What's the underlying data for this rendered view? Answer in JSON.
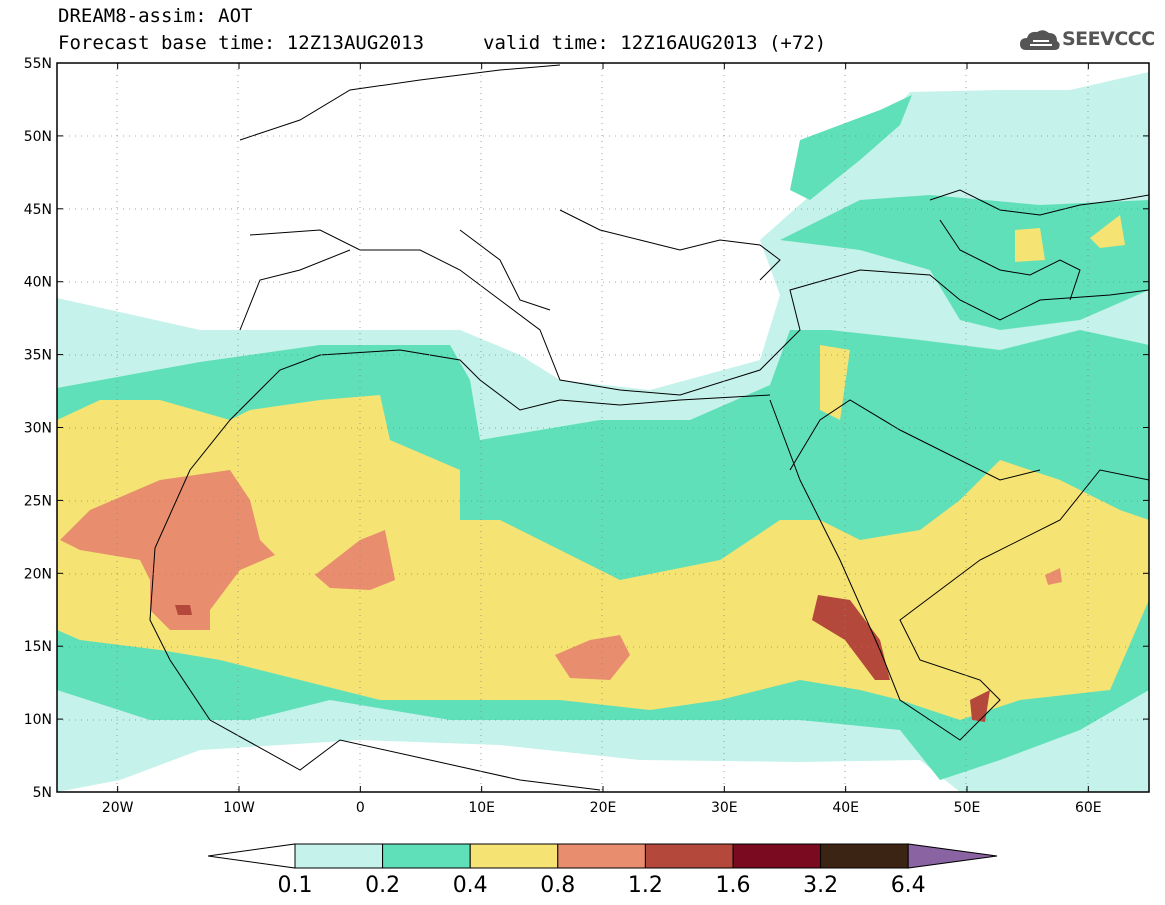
{
  "header": {
    "title": "DREAM8-assim: AOT",
    "base_time": "Forecast base time: 12Z13AUG2013",
    "valid_time": "valid time: 12Z16AUG2013 (+72)",
    "logo_text": "SEEVCCC",
    "logo_icon": "cloud-icon"
  },
  "map": {
    "lon_range": [
      -25,
      65
    ],
    "lat_range": [
      5,
      55
    ],
    "lat_labels": [
      "55N",
      "50N",
      "45N",
      "40N",
      "35N",
      "30N",
      "25N",
      "20N",
      "15N",
      "10N",
      "5N"
    ],
    "lon_labels": [
      "20W",
      "10W",
      "0",
      "10E",
      "20E",
      "30E",
      "40E",
      "50E",
      "60E"
    ]
  },
  "legend": {
    "thresholds": [
      "0.1",
      "0.2",
      "0.4",
      "0.8",
      "1.2",
      "1.6",
      "3.2",
      "6.4"
    ],
    "colors": [
      "#ffffff",
      "#c5f2ea",
      "#5fe0b8",
      "#f5e374",
      "#e88e6e",
      "#b3483b",
      "#7a0a1f",
      "#3b2414",
      "#8a63a3"
    ]
  }
}
